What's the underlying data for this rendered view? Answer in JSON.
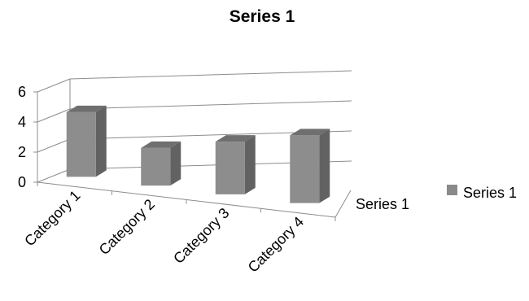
{
  "chart_data": {
    "type": "bar",
    "title": "Series 1",
    "categories": [
      "Category 1",
      "Category 2",
      "Category 3",
      "Category 4"
    ],
    "series": [
      {
        "name": "Series 1",
        "values": [
          4.3,
          2.5,
          3.5,
          4.5
        ]
      }
    ],
    "depth_axis_label": "Series 1",
    "yticks": [
      "0",
      "2",
      "4",
      "6"
    ],
    "ylim": [
      0,
      6
    ],
    "grid": true,
    "legend": "right",
    "style": "3d-column",
    "colors": {
      "bar_front": "#8d8d8d",
      "bar_side": "#626262",
      "bar_top": "#6f6f6f",
      "legend_swatch": "#8a8a8a"
    }
  }
}
